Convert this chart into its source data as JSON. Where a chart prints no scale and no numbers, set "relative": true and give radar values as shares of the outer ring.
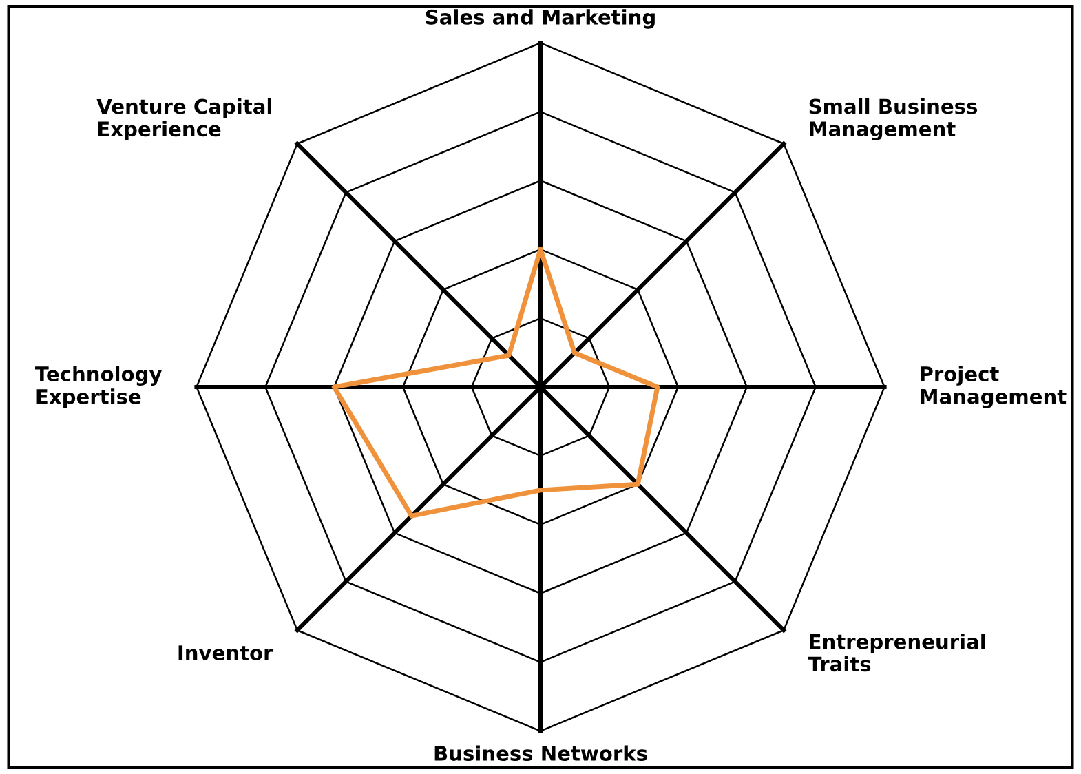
{
  "chart_data": {
    "type": "radar",
    "relative": true,
    "grid": true,
    "legend": false,
    "categories": [
      "Sales and Marketing",
      "Small Business\nManagement",
      "Project\nManagement",
      "Entrepreneurial\nTraits",
      "Business Networks",
      "Inventor",
      "Technology\nExpertise",
      "Venture Capital\nExperience"
    ],
    "series": [
      {
        "color": "#f0923c",
        "values": [
          0.4,
          0.14,
          0.34,
          0.4,
          0.3,
          0.53,
          0.6,
          0.13
        ]
      }
    ]
  }
}
